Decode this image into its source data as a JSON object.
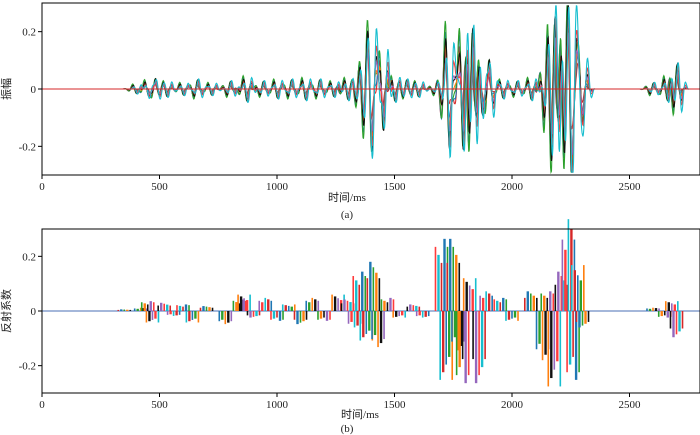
{
  "colors": [
    "#d62728",
    "#1f77b4",
    "#2ca02c",
    "#ff7f0e",
    "#111111",
    "#9467bd",
    "#ff3b3b",
    "#17becf"
  ],
  "chart_data": [
    {
      "type": "line",
      "panel_label": "(a)",
      "xlabel": "时间/ms",
      "ylabel": "振幅",
      "xlim": [
        0,
        2800
      ],
      "ylim": [
        -0.3,
        0.3
      ],
      "xticks": [
        "0",
        "500",
        "1000",
        "1500",
        "2000",
        "2500"
      ],
      "xtick_values": [
        0,
        500,
        1000,
        1500,
        2000,
        2500
      ],
      "yticks": [
        "-0.2",
        "0",
        "0.2"
      ],
      "ytick_values": [
        -0.2,
        0,
        0.2
      ],
      "baseline": 0,
      "events": [
        {
          "t": 400,
          "amp": 0.015
        },
        {
          "t": 450,
          "amp": 0.03
        },
        {
          "t": 480,
          "amp": -0.035
        },
        {
          "t": 530,
          "amp": 0.025
        },
        {
          "t": 600,
          "amp": 0.02
        },
        {
          "t": 660,
          "amp": -0.03
        },
        {
          "t": 720,
          "amp": 0.02
        },
        {
          "t": 800,
          "amp": -0.025
        },
        {
          "t": 870,
          "amp": 0.04
        },
        {
          "t": 940,
          "amp": -0.025
        },
        {
          "t": 1000,
          "amp": 0.03
        },
        {
          "t": 1060,
          "amp": -0.03
        },
        {
          "t": 1120,
          "amp": 0.035
        },
        {
          "t": 1180,
          "amp": -0.03
        },
        {
          "t": 1240,
          "amp": 0.025
        },
        {
          "t": 1300,
          "amp": 0.035
        },
        {
          "t": 1350,
          "amp": -0.05
        },
        {
          "t": 1380,
          "amp": -0.1
        },
        {
          "t": 1400,
          "amp": 0.12
        },
        {
          "t": 1420,
          "amp": -0.09
        },
        {
          "t": 1450,
          "amp": 0.14
        },
        {
          "t": 1500,
          "amp": 0.04
        },
        {
          "t": 1550,
          "amp": -0.03
        },
        {
          "t": 1600,
          "amp": 0.025
        },
        {
          "t": 1680,
          "amp": -0.02
        },
        {
          "t": 1730,
          "amp": 0.21
        },
        {
          "t": 1760,
          "amp": -0.1
        },
        {
          "t": 1790,
          "amp": 0.21
        },
        {
          "t": 1830,
          "amp": -0.2
        },
        {
          "t": 1870,
          "amp": 0.1
        },
        {
          "t": 1900,
          "amp": -0.1
        },
        {
          "t": 1960,
          "amp": 0.03
        },
        {
          "t": 2020,
          "amp": -0.025
        },
        {
          "t": 2080,
          "amp": 0.035
        },
        {
          "t": 2150,
          "amp": -0.12
        },
        {
          "t": 2180,
          "amp": -0.23
        },
        {
          "t": 2220,
          "amp": 0.15
        },
        {
          "t": 2250,
          "amp": 0.28
        },
        {
          "t": 2275,
          "amp": -0.14
        },
        {
          "t": 2300,
          "amp": 0.1
        },
        {
          "t": 2600,
          "amp": -0.02
        },
        {
          "t": 2660,
          "amp": 0.04
        },
        {
          "t": 2700,
          "amp": -0.08
        }
      ]
    },
    {
      "type": "bar",
      "panel_label": "(b)",
      "xlabel": "时间/ms",
      "ylabel": "反射系数",
      "xlim": [
        0,
        2800
      ],
      "ylim": [
        -0.3,
        0.3
      ],
      "xticks": [
        "0",
        "500",
        "1000",
        "1500",
        "2000",
        "2500"
      ],
      "xtick_values": [
        0,
        500,
        1000,
        1500,
        2000,
        2500
      ],
      "yticks": [
        "-0.2",
        "0",
        "0.2"
      ],
      "ytick_values": [
        -0.2,
        0,
        0.2
      ],
      "baseline": 0,
      "spikes": [
        {
          "t": 350,
          "v": 0.005
        },
        {
          "t": 420,
          "v": 0.01
        },
        {
          "t": 450,
          "v": 0.03
        },
        {
          "t": 470,
          "v": -0.035
        },
        {
          "t": 520,
          "v": 0.025
        },
        {
          "t": 560,
          "v": -0.015
        },
        {
          "t": 600,
          "v": 0.02
        },
        {
          "t": 640,
          "v": -0.035
        },
        {
          "t": 700,
          "v": 0.015
        },
        {
          "t": 780,
          "v": -0.04
        },
        {
          "t": 840,
          "v": 0.035
        },
        {
          "t": 860,
          "v": 0.05
        },
        {
          "t": 900,
          "v": -0.02
        },
        {
          "t": 950,
          "v": 0.04
        },
        {
          "t": 1000,
          "v": -0.03
        },
        {
          "t": 1050,
          "v": 0.02
        },
        {
          "t": 1100,
          "v": -0.04
        },
        {
          "t": 1150,
          "v": 0.04
        },
        {
          "t": 1200,
          "v": -0.03
        },
        {
          "t": 1260,
          "v": 0.05
        },
        {
          "t": 1300,
          "v": 0.035
        },
        {
          "t": 1330,
          "v": -0.05
        },
        {
          "t": 1350,
          "v": 0.12
        },
        {
          "t": 1380,
          "v": -0.09
        },
        {
          "t": 1410,
          "v": 0.15
        },
        {
          "t": 1430,
          "v": -0.11
        },
        {
          "t": 1470,
          "v": 0.04
        },
        {
          "t": 1520,
          "v": -0.02
        },
        {
          "t": 1580,
          "v": 0.02
        },
        {
          "t": 1620,
          "v": -0.02
        },
        {
          "t": 1700,
          "v": 0.22
        },
        {
          "t": 1720,
          "v": -0.21
        },
        {
          "t": 1750,
          "v": 0.22
        },
        {
          "t": 1770,
          "v": -0.12
        },
        {
          "t": 1790,
          "v": -0.22
        },
        {
          "t": 1820,
          "v": 0.1
        },
        {
          "t": 1860,
          "v": -0.22
        },
        {
          "t": 1890,
          "v": 0.06
        },
        {
          "t": 1950,
          "v": 0.04
        },
        {
          "t": 2000,
          "v": -0.03
        },
        {
          "t": 2080,
          "v": 0.06
        },
        {
          "t": 2130,
          "v": -0.15
        },
        {
          "t": 2150,
          "v": 0.06
        },
        {
          "t": 2180,
          "v": -0.23
        },
        {
          "t": 2210,
          "v": 0.12
        },
        {
          "t": 2240,
          "v": 0.28
        },
        {
          "t": 2260,
          "v": -0.21
        },
        {
          "t": 2280,
          "v": 0.14
        },
        {
          "t": 2300,
          "v": -0.05
        },
        {
          "t": 2600,
          "v": 0.01
        },
        {
          "t": 2650,
          "v": -0.02
        },
        {
          "t": 2680,
          "v": 0.03
        },
        {
          "t": 2700,
          "v": -0.08
        }
      ]
    }
  ]
}
